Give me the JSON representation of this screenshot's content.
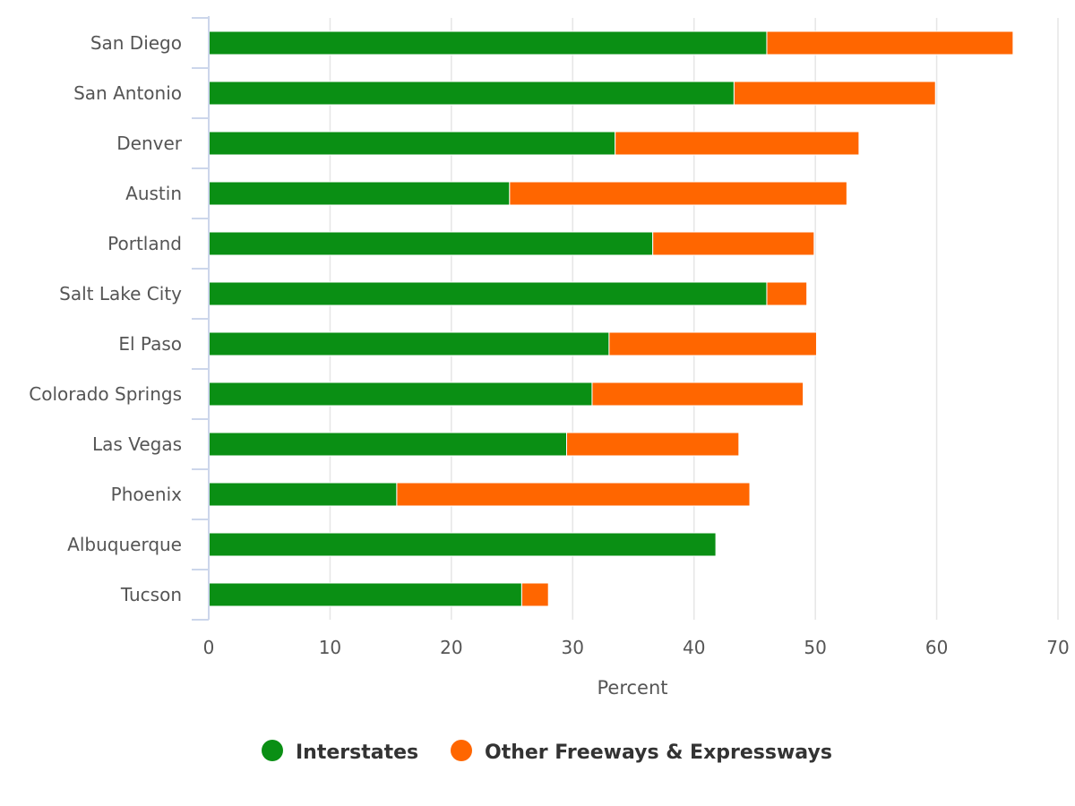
{
  "chart_data": {
    "type": "bar",
    "orientation": "horizontal",
    "stacked": true,
    "categories": [
      "San Diego",
      "San Antonio",
      "Denver",
      "Austin",
      "Portland",
      "Salt Lake City",
      "El Paso",
      "Colorado Springs",
      "Las Vegas",
      "Phoenix",
      "Albuquerque",
      "Tucson"
    ],
    "series": [
      {
        "name": "Interstates",
        "color": "#0a8f14",
        "values": [
          46.0,
          43.3,
          33.5,
          24.8,
          36.6,
          46.0,
          33.0,
          31.6,
          29.5,
          15.5,
          41.8,
          25.8
        ]
      },
      {
        "name": "Other Freeways & Expressways",
        "color": "#ff6600",
        "values": [
          20.3,
          16.6,
          20.1,
          27.8,
          13.3,
          3.3,
          17.1,
          17.4,
          14.2,
          29.1,
          0,
          2.2
        ]
      }
    ],
    "xlabel": "Percent",
    "ylabel": "",
    "xlim": [
      0,
      70
    ],
    "xticks": [
      "0",
      "10",
      "20",
      "30",
      "40",
      "50",
      "60",
      "70"
    ],
    "grid": true,
    "legend": "bottom-center"
  }
}
